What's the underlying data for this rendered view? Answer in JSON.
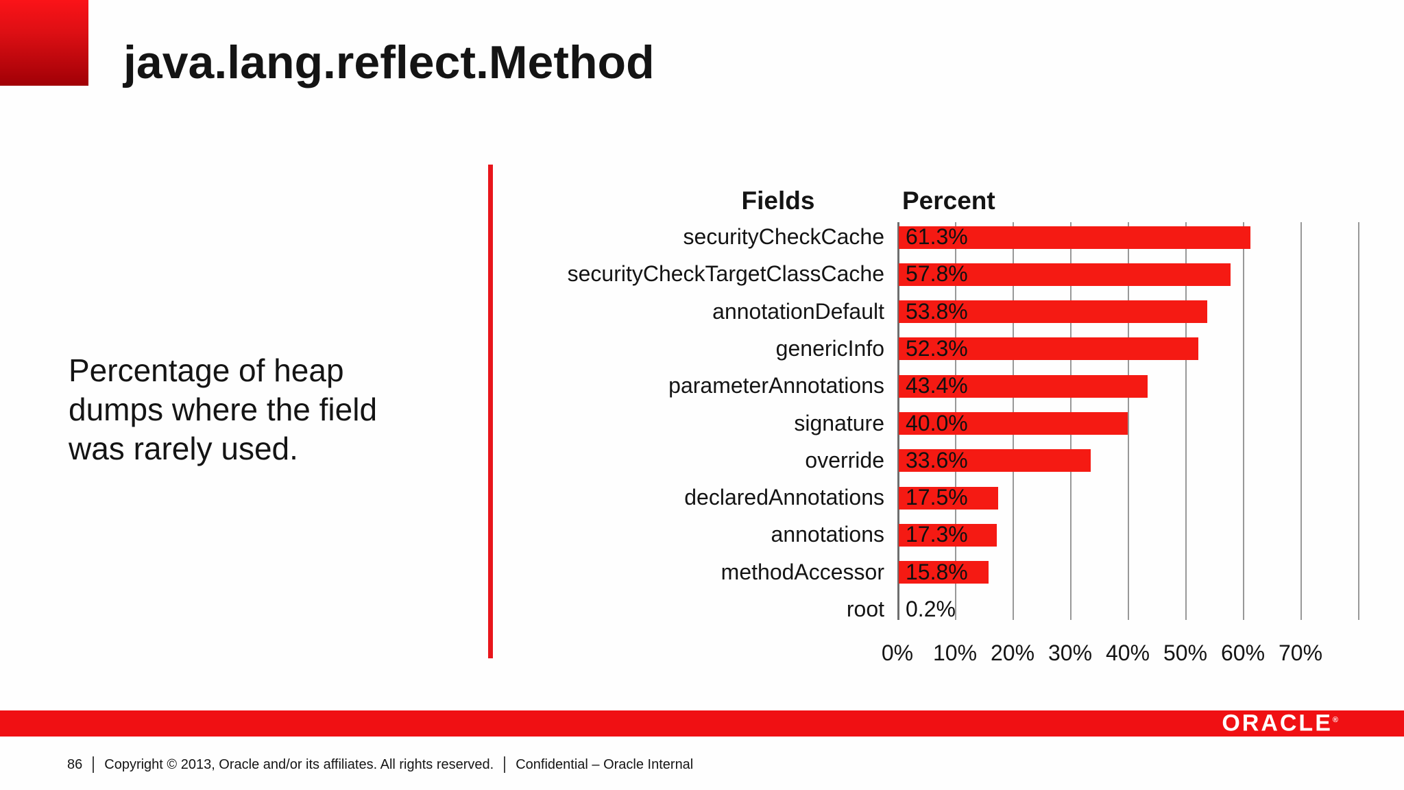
{
  "slide": {
    "title": "java.lang.reflect.Method",
    "description_lines": [
      "Percentage of heap",
      "dumps where the field",
      "was rarely used."
    ]
  },
  "chart_data": {
    "type": "bar",
    "orientation": "horizontal",
    "title": "",
    "col_headers": {
      "fields": "Fields",
      "percent": "Percent"
    },
    "categories": [
      "securityCheckCache",
      "securityCheckTargetClassCache",
      "annotationDefault",
      "genericInfo",
      "parameterAnnotations",
      "signature",
      "override",
      "declaredAnnotations",
      "annotations",
      "methodAccessor",
      "root"
    ],
    "values": [
      61.3,
      57.8,
      53.8,
      52.3,
      43.4,
      40.0,
      33.6,
      17.5,
      17.3,
      15.8,
      0.2
    ],
    "value_labels": [
      "61.3%",
      "57.8%",
      "53.8%",
      "52.3%",
      "43.4%",
      "40.0%",
      "33.6%",
      "17.5%",
      "17.3%",
      "15.8%",
      "0.2%"
    ],
    "x_ticks": [
      "0%",
      "10%",
      "20%",
      "30%",
      "40%",
      "50%",
      "60%",
      "70%"
    ],
    "x_tick_values": [
      0,
      10,
      20,
      30,
      40,
      50,
      60,
      70
    ],
    "xlim": [
      0,
      80
    ],
    "grid": true,
    "legend": false,
    "bar_color": "#f51a13",
    "grid_color": "#989898"
  },
  "footer": {
    "page_number": "86",
    "copyright": "Copyright © 2013, Oracle and/or its affiliates. All rights reserved.",
    "confidential": "Confidential – Oracle Internal",
    "brand": "ORACLE",
    "brand_registered": "®"
  },
  "colors": {
    "accent_red": "#e8161c",
    "corner_gradient_top": "#fb1318",
    "corner_gradient_bottom": "#a00006",
    "footer_bar_red": "#f01013",
    "text": "#141414"
  }
}
